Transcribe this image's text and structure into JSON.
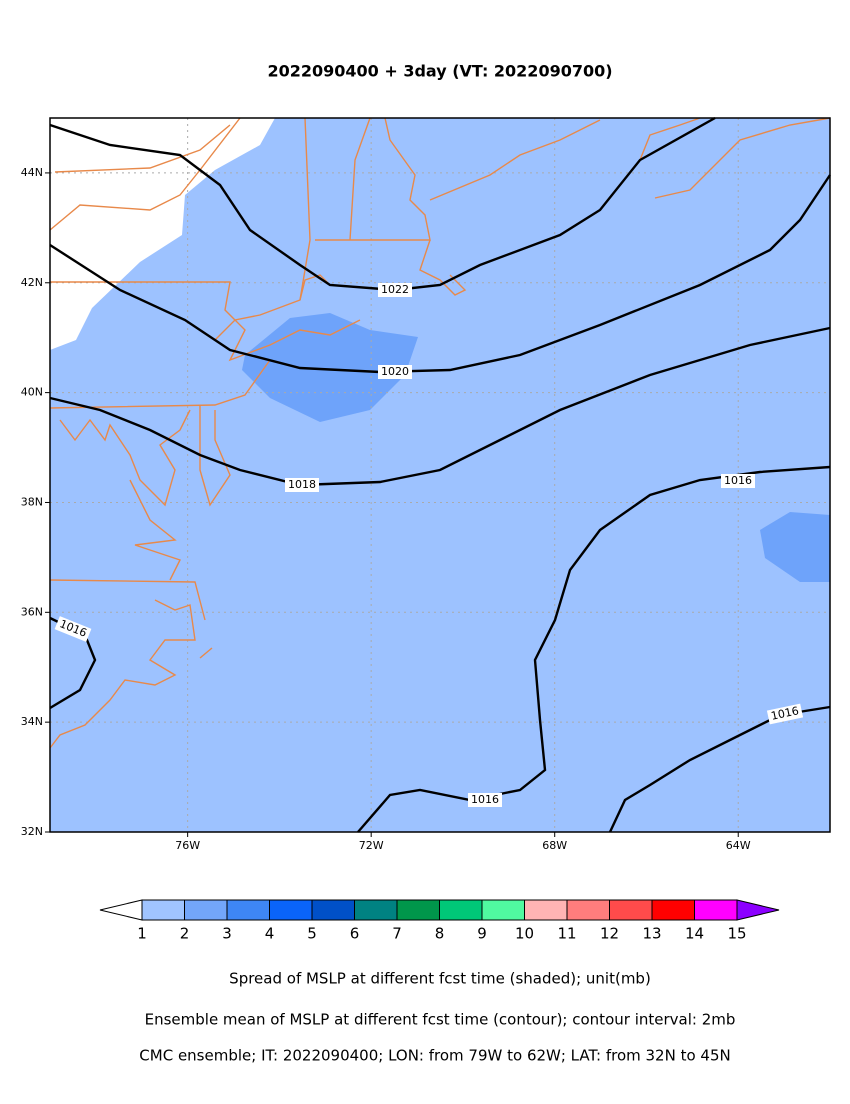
{
  "map": {
    "title": "2022090400 + 3day (VT: 2022090700)",
    "xlim": [
      -79,
      -62
    ],
    "ylim": [
      32,
      45
    ],
    "xticks": [
      {
        "value": -76,
        "label": "76W"
      },
      {
        "value": -72,
        "label": "72W"
      },
      {
        "value": -68,
        "label": "68W"
      },
      {
        "value": -64,
        "label": "64W"
      }
    ],
    "yticks": [
      {
        "value": 32,
        "label": "32N"
      },
      {
        "value": 34,
        "label": "34N"
      },
      {
        "value": 36,
        "label": "36N"
      },
      {
        "value": 38,
        "label": "38N"
      },
      {
        "value": 40,
        "label": "40N"
      },
      {
        "value": 42,
        "label": "42N"
      },
      {
        "value": 44,
        "label": "44N"
      }
    ],
    "grid": true,
    "contour_labels": [
      1022,
      1020,
      1018,
      1016,
      1016,
      1016,
      1016
    ],
    "colorbar": {
      "levels": [
        1,
        2,
        3,
        4,
        5,
        6,
        7,
        8,
        9,
        10,
        11,
        12,
        13,
        14,
        15
      ],
      "colors": [
        "#ffffff",
        "#a0c4ff",
        "#73a6fa",
        "#3e86f5",
        "#0a64fa",
        "#0050c8",
        "#008282",
        "#00964b",
        "#00c878",
        "#50faa0",
        "#ffb4b4",
        "#ff7d7d",
        "#ff4b4b",
        "#ff0000",
        "#ff00ff",
        "#8c00ff"
      ]
    },
    "captions": [
      "Spread of MSLP at different fcst time (shaded); unit(mb)",
      "Ensemble mean of MSLP at different fcst time (contour); contour interval: 2mb",
      "CMC ensemble; IT: 2022090400; LON: from 79W to 62W; LAT: from 32N to 45N"
    ]
  }
}
